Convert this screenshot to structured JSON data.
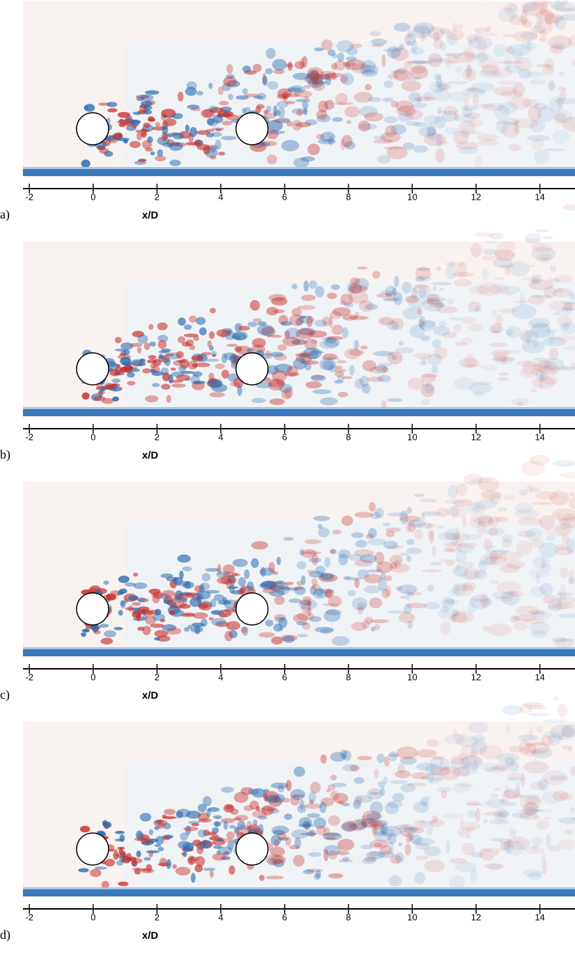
{
  "chart_data": [
    {
      "type": "contour",
      "label": "a)",
      "xlabel": "x/D",
      "xlim": [
        -2.2,
        15.1
      ],
      "xticks": [
        -2,
        0,
        2,
        4,
        6,
        8,
        10,
        12,
        14
      ]
    },
    {
      "type": "contour",
      "label": "b)",
      "xlabel": "x/D",
      "xlim": [
        -2.2,
        15.1
      ],
      "xticks": [
        -2,
        0,
        2,
        4,
        6,
        8,
        10,
        12,
        14
      ]
    },
    {
      "type": "contour",
      "label": "c)",
      "xlabel": "x/D",
      "xlim": [
        -2.2,
        15.1
      ],
      "xticks": [
        -2,
        0,
        2,
        4,
        6,
        8,
        10,
        12,
        14
      ]
    },
    {
      "type": "contour",
      "label": "d)",
      "xlabel": "x/D",
      "xlim": [
        -2.2,
        15.1
      ],
      "xticks": [
        -2,
        0,
        2,
        4,
        6,
        8,
        10,
        12,
        14
      ]
    }
  ]
}
